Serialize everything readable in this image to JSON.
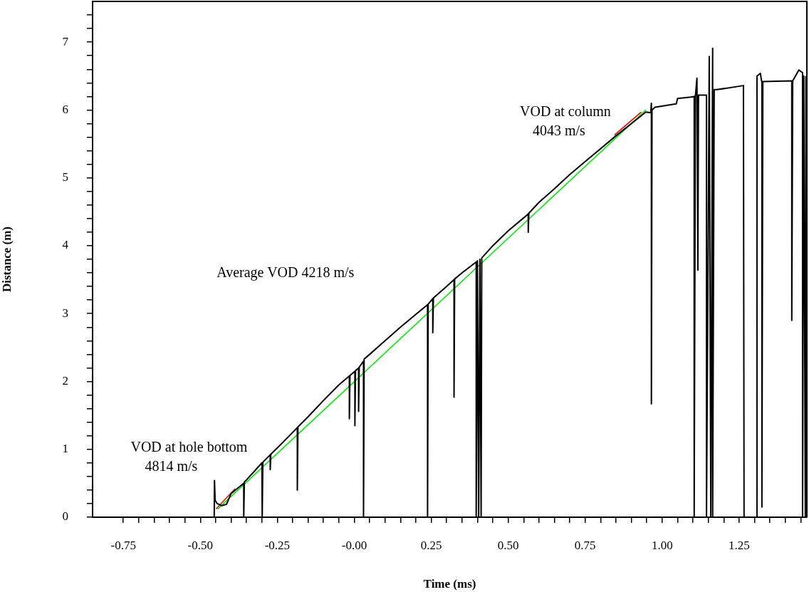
{
  "chart_data": {
    "type": "line",
    "xlabel": "Time (ms)",
    "ylabel": "Distance (m)",
    "xlim": [
      -0.85,
      1.47
    ],
    "ylim": [
      0,
      7.6
    ],
    "xticks": [
      {
        "value": -0.75,
        "label": "-0.75"
      },
      {
        "value": -0.7,
        "label": null
      },
      {
        "value": -0.65,
        "label": null
      },
      {
        "value": -0.6,
        "label": null
      },
      {
        "value": -0.55,
        "label": null
      },
      {
        "value": -0.5,
        "label": "-0.50"
      },
      {
        "value": -0.45,
        "label": null
      },
      {
        "value": -0.4,
        "label": null
      },
      {
        "value": -0.35,
        "label": null
      },
      {
        "value": -0.3,
        "label": null
      },
      {
        "value": -0.25,
        "label": "-0.25"
      },
      {
        "value": -0.2,
        "label": null
      },
      {
        "value": -0.15,
        "label": null
      },
      {
        "value": -0.1,
        "label": null
      },
      {
        "value": -0.05,
        "label": null
      },
      {
        "value": 0,
        "label": "-0.00"
      },
      {
        "value": 0.05,
        "label": null
      },
      {
        "value": 0.1,
        "label": null
      },
      {
        "value": 0.15,
        "label": null
      },
      {
        "value": 0.2,
        "label": null
      },
      {
        "value": 0.25,
        "label": "0.25"
      },
      {
        "value": 0.3,
        "label": null
      },
      {
        "value": 0.35,
        "label": null
      },
      {
        "value": 0.4,
        "label": null
      },
      {
        "value": 0.45,
        "label": null
      },
      {
        "value": 0.5,
        "label": "0.50"
      },
      {
        "value": 0.55,
        "label": null
      },
      {
        "value": 0.6,
        "label": null
      },
      {
        "value": 0.65,
        "label": null
      },
      {
        "value": 0.7,
        "label": null
      },
      {
        "value": 0.75,
        "label": "0.75"
      },
      {
        "value": 0.8,
        "label": null
      },
      {
        "value": 0.85,
        "label": null
      },
      {
        "value": 0.9,
        "label": null
      },
      {
        "value": 0.95,
        "label": null
      },
      {
        "value": 1.0,
        "label": "1.00"
      },
      {
        "value": 1.05,
        "label": null
      },
      {
        "value": 1.1,
        "label": null
      },
      {
        "value": 1.15,
        "label": null
      },
      {
        "value": 1.2,
        "label": null
      },
      {
        "value": 1.25,
        "label": "1.25"
      },
      {
        "value": 1.3,
        "label": null
      },
      {
        "value": 1.35,
        "label": null
      },
      {
        "value": 1.4,
        "label": null
      },
      {
        "value": 1.45,
        "label": null
      }
    ],
    "yticks": [
      0,
      {
        "value": 0.2,
        "label": null
      },
      {
        "value": 0.4,
        "label": null
      },
      {
        "value": 0.6,
        "label": null
      },
      {
        "value": 0.8,
        "label": null
      },
      1,
      {
        "value": 1.2,
        "label": null
      },
      {
        "value": 1.4,
        "label": null
      },
      {
        "value": 1.6,
        "label": null
      },
      {
        "value": 1.8,
        "label": null
      },
      2,
      {
        "value": 2.2,
        "label": null
      },
      {
        "value": 2.4,
        "label": null
      },
      {
        "value": 2.6,
        "label": null
      },
      {
        "value": 2.8,
        "label": null
      },
      3,
      {
        "value": 3.2,
        "label": null
      },
      {
        "value": 3.4,
        "label": null
      },
      {
        "value": 3.6,
        "label": null
      },
      {
        "value": 3.8,
        "label": null
      },
      4,
      {
        "value": 4.2,
        "label": null
      },
      {
        "value": 4.4,
        "label": null
      },
      {
        "value": 4.6,
        "label": null
      },
      {
        "value": 4.8,
        "label": null
      },
      5,
      {
        "value": 5.2,
        "label": null
      },
      {
        "value": 5.4,
        "label": null
      },
      {
        "value": 5.6,
        "label": null
      },
      {
        "value": 5.8,
        "label": null
      },
      6,
      {
        "value": 6.2,
        "label": null
      },
      {
        "value": 6.4,
        "label": null
      },
      {
        "value": 6.6,
        "label": null
      },
      {
        "value": 6.8,
        "label": null
      },
      7,
      {
        "value": 7.2,
        "label": null
      },
      {
        "value": 7.4,
        "label": null
      }
    ],
    "grid": false,
    "legend": false,
    "marker": "none",
    "line_style": "solid",
    "series": [
      {
        "color": "#000000",
        "x": [
          -0.455,
          -0.454,
          -0.452,
          -0.445,
          -0.43,
          -0.415,
          -0.4,
          -0.37,
          -0.359,
          -0.359,
          -0.357,
          -0.35,
          -0.3,
          -0.299,
          -0.297,
          -0.273,
          -0.273,
          -0.271,
          -0.25,
          -0.2,
          -0.185,
          -0.185,
          -0.183,
          -0.15,
          -0.1,
          -0.05,
          -0.016,
          -0.016,
          -0.014,
          0.002,
          0.002,
          0.004,
          0.014,
          0.014,
          0.016,
          0.03,
          0.03,
          0.032,
          0.05,
          0.1,
          0.15,
          0.2,
          0.238,
          0.238,
          0.24,
          0.255,
          0.255,
          0.257,
          0.3,
          0.324,
          0.324,
          0.326,
          0.35,
          0.396,
          0.396,
          0.4,
          0.404,
          0.408,
          0.412,
          0.414,
          0.45,
          0.5,
          0.55,
          0.565,
          0.565,
          0.567,
          0.6,
          0.65,
          0.7,
          0.75,
          0.8,
          0.85,
          0.9,
          0.947,
          0.963,
          0.965,
          0.965,
          0.967,
          0.977,
          1.046,
          1.05,
          1.093,
          1.104,
          1.104,
          1.108,
          1.113,
          1.116,
          1.118,
          1.144,
          1.144,
          1.153,
          1.158,
          1.164,
          1.164,
          1.169,
          1.178,
          1.264,
          1.266,
          1.306,
          1.308,
          1.319,
          1.324,
          1.324,
          1.327,
          1.421,
          1.421,
          1.424,
          1.444,
          1.456,
          1.456,
          1.46,
          1.465,
          1.467
        ],
        "values": [
          0,
          0.54,
          0.25,
          0.2,
          0.17,
          0.19,
          0.35,
          0.46,
          0.5,
          0,
          0.52,
          0.55,
          0.8,
          0,
          0.81,
          0.92,
          0.7,
          0.93,
          1.02,
          1.25,
          1.32,
          0.4,
          1.33,
          1.48,
          1.72,
          1.95,
          2.08,
          1.45,
          2.09,
          2.15,
          1.35,
          2.16,
          2.2,
          1.56,
          2.21,
          2.3,
          0,
          2.33,
          2.4,
          2.6,
          2.8,
          2.99,
          3.13,
          0,
          3.14,
          3.22,
          2.72,
          3.23,
          3.4,
          3.5,
          1.77,
          3.51,
          3.6,
          3.76,
          0,
          3.78,
          0,
          3.8,
          0,
          3.82,
          4,
          4.22,
          4.41,
          4.47,
          4.2,
          4.48,
          4.64,
          4.84,
          5.05,
          5.24,
          5.43,
          5.62,
          5.8,
          5.97,
          5.96,
          6.1,
          1.67,
          6,
          6.04,
          6.09,
          6.17,
          6.19,
          6.2,
          0,
          6.2,
          6.47,
          3.64,
          6.22,
          6.22,
          0,
          6.79,
          0,
          6.91,
          0,
          6.3,
          6.3,
          6.36,
          0,
          0,
          6.5,
          6.54,
          6.4,
          0.15,
          6.42,
          6.43,
          2.9,
          6.43,
          6.59,
          6.55,
          0,
          6.5,
          0,
          6.5
        ]
      },
      {
        "color": "#00ee00",
        "x": [
          -0.444,
          0.947
        ],
        "values": [
          0.12,
          6.0
        ]
      },
      {
        "color": "#ff0000",
        "x": [
          -0.449,
          -0.387
        ],
        "values": [
          0.12,
          0.42
        ]
      },
      {
        "color": "#ff0000",
        "x": [
          0.845,
          0.932
        ],
        "values": [
          5.63,
          5.97
        ]
      }
    ],
    "annotations": [
      "VOD at hole bottom",
      "4814 m/s",
      "Average VOD 4218 m/s",
      "VOD at column",
      "4043 m/s"
    ]
  }
}
